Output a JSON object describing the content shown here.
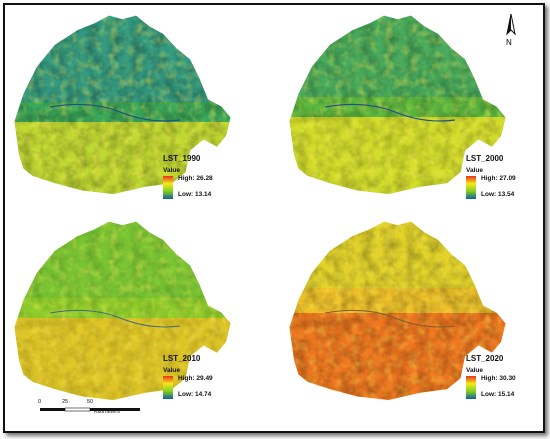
{
  "maps": [
    {
      "name": "LST_1990",
      "subtitle": "Value",
      "high": "High: 26.28",
      "low": "Low: 13.14"
    },
    {
      "name": "LST_2000",
      "subtitle": "Value",
      "high": "High: 27.09",
      "low": "Low: 13.54"
    },
    {
      "name": "LST_2010",
      "subtitle": "Value",
      "high": "High: 29.49",
      "low": "Low: 14.74"
    },
    {
      "name": "LST_2020",
      "subtitle": "Value",
      "high": "High: 30.30",
      "low": "Low: 15.14"
    }
  ],
  "north_label": "N",
  "scale": {
    "ticks": [
      "0",
      "25",
      "50"
    ],
    "unit": "Kilometers"
  },
  "colors": {
    "high": "#e8321e",
    "mid_high": "#f6a21c",
    "mid": "#f7e81a",
    "mid_low": "#7fcf1e",
    "low": "#0f5fa0"
  }
}
